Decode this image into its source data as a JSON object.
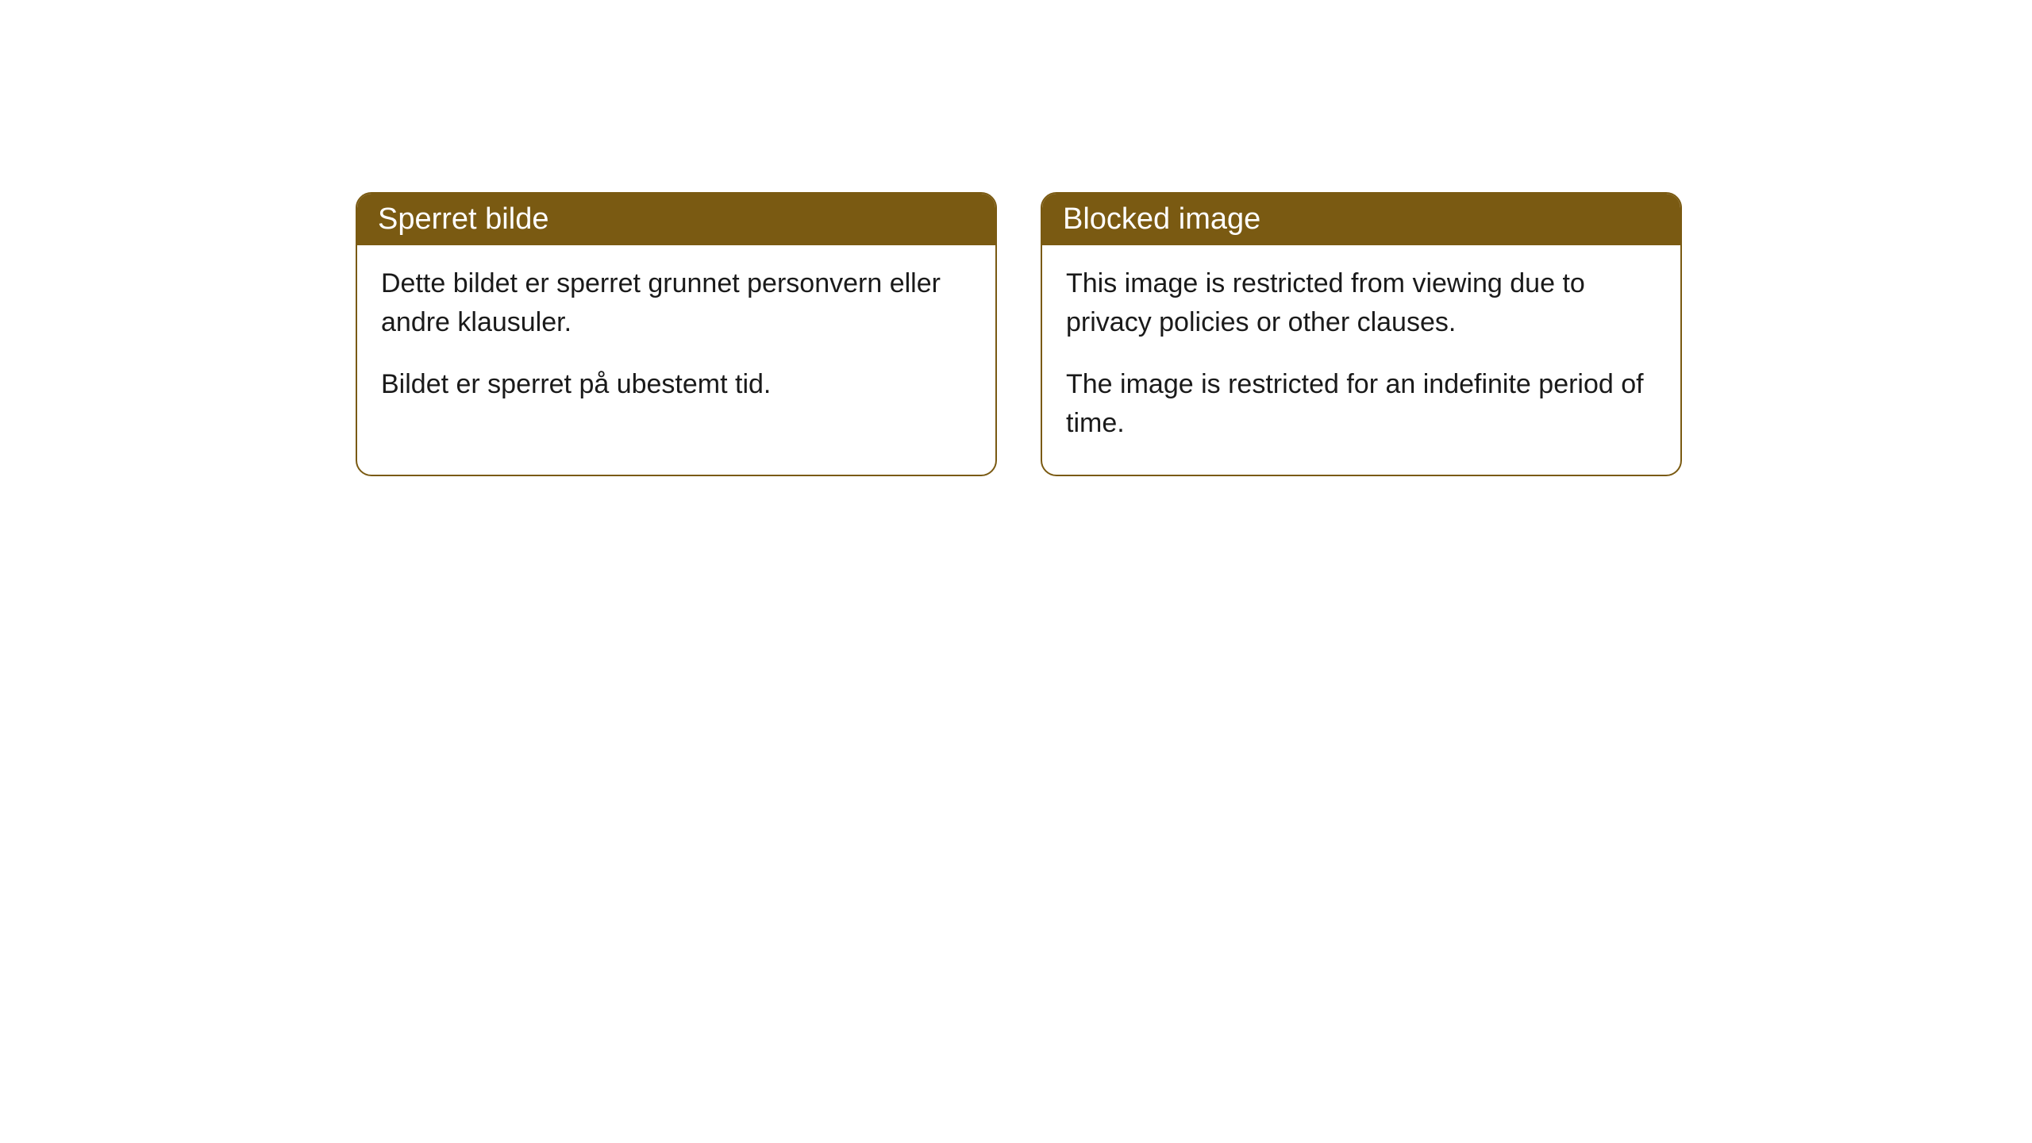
{
  "cards": {
    "norwegian": {
      "title": "Sperret bilde",
      "paragraph1": "Dette bildet er sperret grunnet personvern eller andre klausuler.",
      "paragraph2": "Bildet er sperret på ubestemt tid."
    },
    "english": {
      "title": "Blocked image",
      "paragraph1": "This image is restricted from viewing due to privacy policies or other clauses.",
      "paragraph2": "The image is restricted for an indefinite period of time."
    }
  },
  "styling": {
    "header_bg_color": "#7a5a12",
    "header_text_color": "#ffffff",
    "border_color": "#7a5a12",
    "body_bg_color": "#ffffff",
    "body_text_color": "#1a1a1a",
    "border_radius": 20,
    "header_fontsize": 38,
    "body_fontsize": 34
  }
}
